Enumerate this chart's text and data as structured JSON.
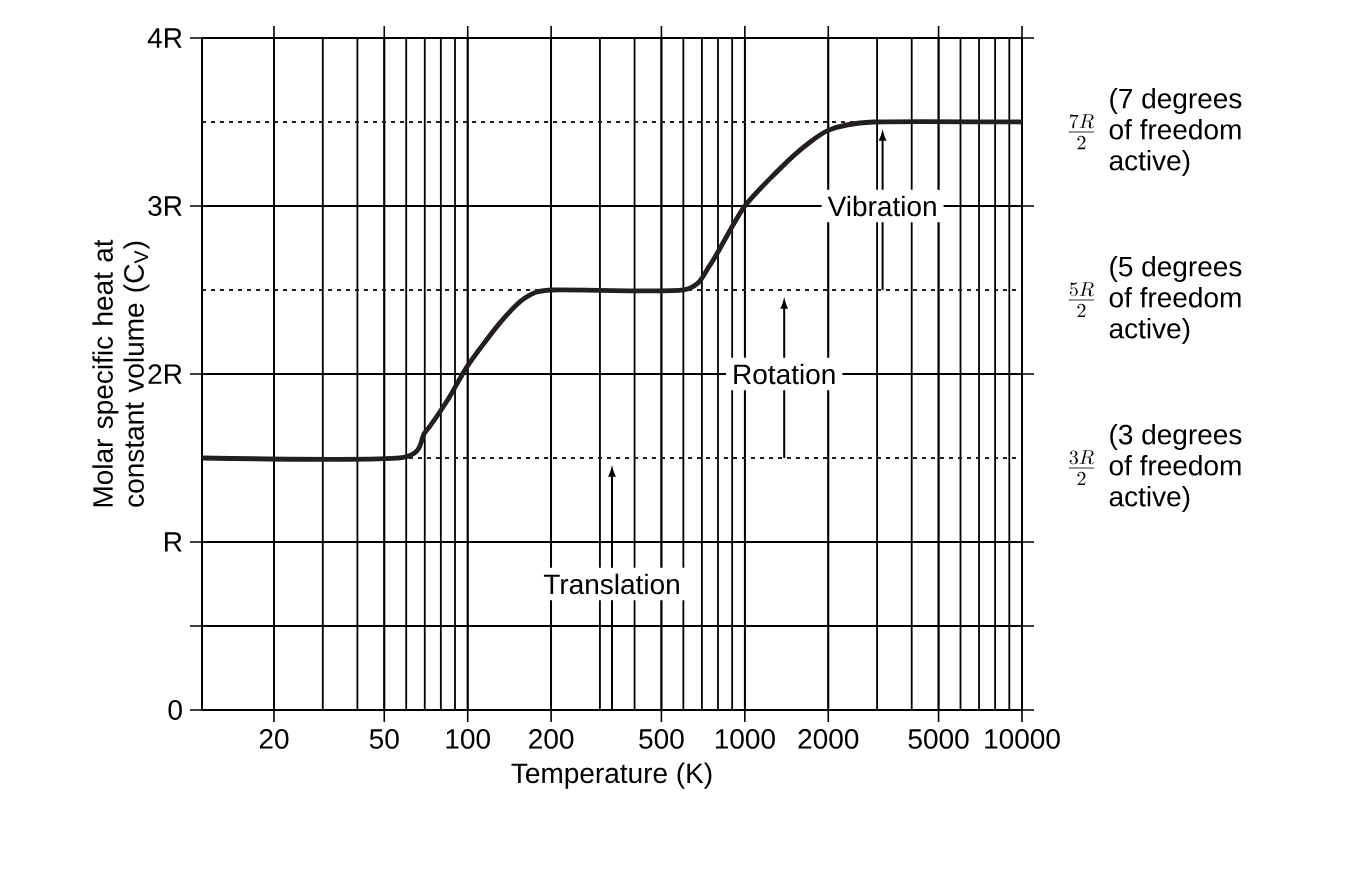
{
  "chart_data": {
    "type": "line",
    "xlabel": "Temperature (K)",
    "ylabel": "Molar specific heat at constant volume (C$_{V}$)",
    "log": "x",
    "xlim": [
      11,
      10000
    ],
    "xticks": [
      20,
      50,
      100,
      200,
      500,
      1000,
      2000,
      5000,
      10000
    ],
    "ylim": [
      0,
      4
    ],
    "yticks": [
      0,
      {
        "value": 0.5,
        "label": null
      },
      {
        "value": 1,
        "label": "R"
      },
      {
        "value": 2,
        "label": "2R"
      },
      {
        "value": 3,
        "label": "3R"
      },
      {
        "value": 4,
        "label": "4R"
      }
    ],
    "grid": true,
    "x": [
      11,
      57,
      70,
      85,
      100,
      130,
      160,
      200,
      600,
      750,
      1000,
      1500,
      2000,
      2900,
      10000
    ],
    "series": [
      {
        "color": "#231f20",
        "values": [
          1.5,
          1.5,
          1.65,
          1.85,
          2.05,
          2.3,
          2.45,
          2.5,
          2.5,
          2.65,
          3.0,
          3.3,
          3.45,
          3.5,
          3.5
        ]
      }
    ],
    "ref_lines": [
      {
        "axis": "y",
        "value": 1.5,
        "label": "\\frac{3R}{2}",
        "line_style": "dotted"
      },
      {
        "axis": "y",
        "value": 2.5,
        "label": "\\frac{5R}{2}",
        "line_style": "dotted"
      },
      {
        "axis": "y",
        "value": 3.5,
        "label": "\\frac{7R}{2}",
        "line_style": "dotted"
      }
    ],
    "annotations": [
      "Translation",
      "Rotation",
      "Vibration",
      "(3 degrees of freedom active)",
      "(5 degrees of freedom active)",
      "(7 degrees of freedom active)"
    ]
  }
}
